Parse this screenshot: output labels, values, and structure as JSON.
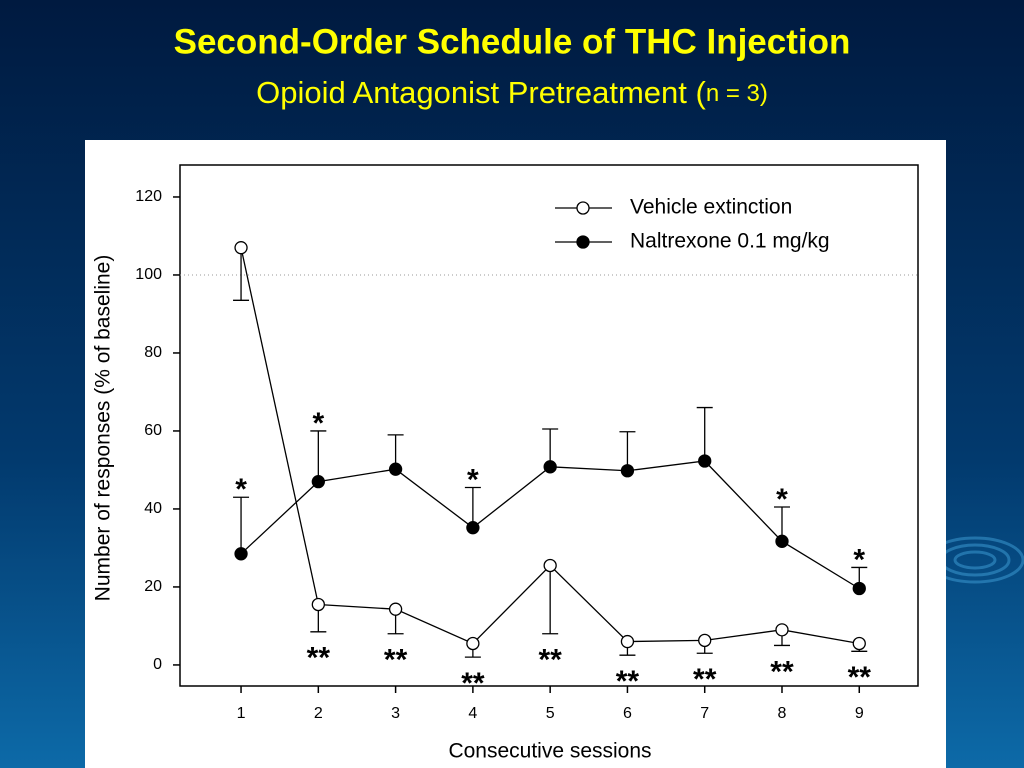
{
  "chart_data": {
    "type": "line",
    "title": "Second-Order Schedule of THC Injection",
    "subtitle": [
      "Opioid Antagonist Pretreatment (",
      "n = 3)"
    ],
    "xlabel": "Consecutive sessions",
    "ylabel": "Number of responses (% of baseline)",
    "x": [
      1,
      2,
      3,
      4,
      5,
      6,
      7,
      8,
      9
    ],
    "xlim": [
      0.21,
      9.76
    ],
    "xticks": [
      1,
      2,
      3,
      4,
      5,
      6,
      7,
      8,
      9
    ],
    "ylim": [
      -5.4,
      128.2
    ],
    "yticks": [
      0,
      20,
      40,
      60,
      80,
      100,
      120
    ],
    "reference_line": 100,
    "legend": "upper right",
    "series": [
      {
        "name": "Vehicle extinction",
        "color": "#000000",
        "marker_fill": "#ffffff",
        "values": [
          107,
          15.5,
          14.3,
          5.5,
          25.5,
          6,
          6.3,
          9,
          5.5
        ],
        "errors": [
          13.5,
          7,
          6.3,
          3.5,
          17.5,
          3.5,
          3.3,
          4,
          2
        ],
        "error_direction": "down",
        "annotations": [
          null,
          "**",
          "**",
          "**",
          "**",
          "**",
          "**",
          "**",
          "**"
        ]
      },
      {
        "name": "Naltrexone 0.1 mg/kg",
        "color": "#000000",
        "marker_fill": "#000000",
        "values": [
          28.5,
          47,
          50.2,
          35.2,
          50.8,
          49.8,
          52.3,
          31.7,
          19.6
        ],
        "errors": [
          14.5,
          13,
          8.8,
          10.3,
          9.7,
          10,
          13.7,
          8.8,
          5.4
        ],
        "error_direction": "up",
        "annotations": [
          "*",
          "*",
          null,
          "*",
          null,
          null,
          null,
          "*",
          "*"
        ]
      }
    ]
  }
}
